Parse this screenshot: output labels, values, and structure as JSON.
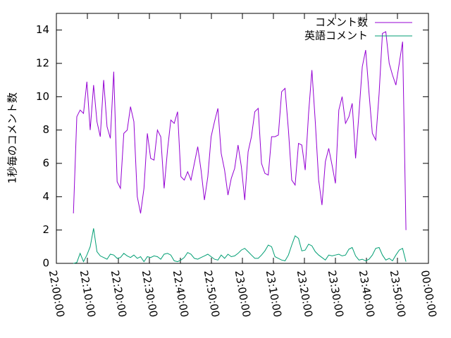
{
  "chart_data": {
    "type": "line",
    "ylabel": "1秒毎のコメント数",
    "x": [
      "22:05:30",
      "22:06:35",
      "22:07:40",
      "22:08:45",
      "22:09:50",
      "22:10:55",
      "22:12:00",
      "22:13:05",
      "22:14:10",
      "22:15:15",
      "22:16:20",
      "22:17:25",
      "22:18:30",
      "22:19:35",
      "22:20:40",
      "22:21:45",
      "22:22:50",
      "22:23:55",
      "22:25:00",
      "22:26:05",
      "22:27:10",
      "22:28:15",
      "22:29:20",
      "22:30:25",
      "22:31:30",
      "22:32:35",
      "22:33:40",
      "22:34:45",
      "22:35:50",
      "22:36:55",
      "22:38:00",
      "22:39:05",
      "22:40:10",
      "22:41:15",
      "22:42:20",
      "22:43:25",
      "22:44:30",
      "22:45:35",
      "22:46:40",
      "22:47:45",
      "22:48:50",
      "22:49:55",
      "22:51:00",
      "22:52:05",
      "22:53:10",
      "22:54:15",
      "22:55:20",
      "22:56:25",
      "22:57:30",
      "22:58:35",
      "22:59:40",
      "23:00:45",
      "23:01:50",
      "23:02:55",
      "23:04:00",
      "23:05:05",
      "23:06:10",
      "23:07:15",
      "23:08:20",
      "23:09:25",
      "23:10:30",
      "23:11:35",
      "23:12:40",
      "23:13:45",
      "23:14:50",
      "23:15:55",
      "23:17:00",
      "23:18:05",
      "23:19:10",
      "23:20:15",
      "23:21:20",
      "23:22:25",
      "23:23:30",
      "23:24:35",
      "23:25:40",
      "23:26:45",
      "23:27:50",
      "23:28:55",
      "23:30:00",
      "23:31:05",
      "23:32:10",
      "23:33:15",
      "23:34:20",
      "23:35:25",
      "23:36:30",
      "23:37:35",
      "23:38:40",
      "23:39:45",
      "23:40:50",
      "23:41:55",
      "23:43:00",
      "23:44:05",
      "23:45:10",
      "23:46:15",
      "23:47:20",
      "23:48:25",
      "23:49:30",
      "23:50:35",
      "23:51:40",
      "23:52:45"
    ],
    "series": [
      {
        "name": "コメント数",
        "color": "#9400d3",
        "values": [
          3.0,
          8.8,
          9.2,
          9.0,
          10.9,
          8.0,
          10.7,
          8.5,
          7.6,
          11.0,
          8.2,
          7.5,
          11.5,
          4.9,
          4.5,
          7.8,
          8.0,
          9.4,
          8.5,
          4.0,
          3.0,
          4.5,
          7.8,
          6.3,
          6.2,
          8.0,
          7.6,
          4.5,
          6.8,
          8.6,
          8.4,
          9.1,
          5.2,
          5.0,
          5.5,
          5.0,
          6.0,
          7.0,
          5.6,
          3.8,
          5.2,
          7.6,
          8.5,
          9.3,
          6.6,
          5.6,
          4.1,
          5.1,
          5.7,
          7.1,
          5.8,
          3.8,
          6.7,
          7.6,
          9.1,
          9.3,
          6.0,
          5.4,
          5.3,
          7.6,
          7.6,
          7.7,
          10.3,
          10.5,
          8.0,
          5.0,
          4.7,
          7.2,
          7.1,
          5.6,
          9.0,
          11.6,
          8.5,
          5.0,
          3.5,
          6.1,
          6.9,
          5.9,
          4.8,
          9.2,
          10.0,
          8.4,
          8.8,
          9.6,
          6.3,
          9.0,
          11.8,
          12.8,
          10.2,
          7.8,
          7.4,
          10.2,
          13.8,
          13.9,
          12.0,
          11.3,
          10.7,
          12.0,
          13.3,
          2.0
        ]
      },
      {
        "name": "英語コメント",
        "color": "#009e73",
        "values": [
          0,
          0.05,
          0.6,
          0.1,
          0.5,
          1.0,
          2.1,
          0.7,
          0.45,
          0.35,
          0.25,
          0.55,
          0.5,
          0.3,
          0.35,
          0.6,
          0.45,
          0.35,
          0.5,
          0.3,
          0.4,
          0.1,
          0.4,
          0.35,
          0.45,
          0.4,
          0.25,
          0.55,
          0.6,
          0.5,
          0.15,
          0.1,
          0.2,
          0.35,
          0.65,
          0.55,
          0.3,
          0.25,
          0.35,
          0.45,
          0.55,
          0.4,
          0.25,
          0.2,
          0.5,
          0.3,
          0.55,
          0.4,
          0.45,
          0.6,
          0.8,
          0.9,
          0.7,
          0.5,
          0.3,
          0.3,
          0.5,
          0.75,
          1.1,
          1.0,
          0.4,
          0.3,
          0.2,
          0.15,
          0.5,
          1.1,
          1.65,
          1.5,
          0.75,
          0.8,
          1.15,
          1.05,
          0.7,
          0.5,
          0.35,
          0.2,
          0.5,
          0.45,
          0.5,
          0.55,
          0.45,
          0.5,
          0.85,
          0.95,
          0.45,
          0.2,
          0.25,
          0.15,
          0.25,
          0.5,
          0.9,
          0.95,
          0.5,
          0.2,
          0.3,
          0.15,
          0.5,
          0.8,
          0.9,
          0.1
        ]
      }
    ],
    "xlim": [
      "22:00:00",
      "00:00:00"
    ],
    "xticks": [
      "22:00:00",
      "22:10:00",
      "22:20:00",
      "22:30:00",
      "22:40:00",
      "22:50:00",
      "23:00:00",
      "23:10:00",
      "23:20:00",
      "23:30:00",
      "23:40:00",
      "23:50:00",
      "00:00:00"
    ],
    "ylim": [
      0,
      15
    ],
    "yticks": [
      0,
      2,
      4,
      6,
      8,
      10,
      12,
      14
    ],
    "legend": "top-right"
  }
}
